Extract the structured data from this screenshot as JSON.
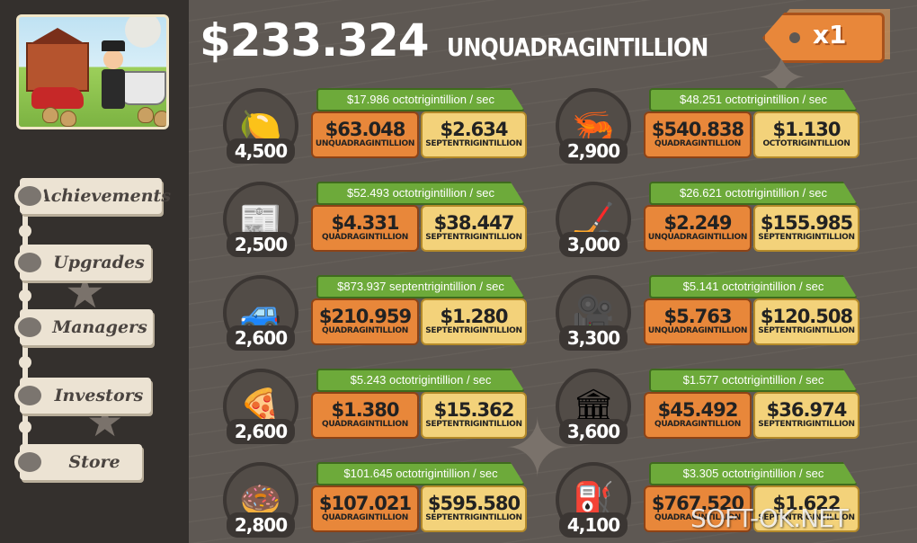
{
  "header": {
    "money_amount": "$233.324",
    "money_unit": "UNQUADRAGINTILLION",
    "multiplier": "x1"
  },
  "nav": [
    {
      "label": "Achievements"
    },
    {
      "label": "Upgrades"
    },
    {
      "label": "Managers"
    },
    {
      "label": "Investors"
    },
    {
      "label": "Store"
    }
  ],
  "businesses": [
    {
      "icon": "lemon-icon",
      "glyph": "🍋",
      "owned": "4,500",
      "rate": "$17.986 octotrigintillion / sec",
      "buy_value": "$63.048",
      "buy_unit": "UNQUADRAGINTILLION",
      "time_value": "$2.634",
      "time_unit": "SEPTENTRIGINTILLION"
    },
    {
      "icon": "shrimp-icon",
      "glyph": "🦐",
      "owned": "2,900",
      "rate": "$48.251 octotrigintillion / sec",
      "buy_value": "$540.838",
      "buy_unit": "QUADRAGINTILLION",
      "time_value": "$1.130",
      "time_unit": "OCTOTRIGINTILLION"
    },
    {
      "icon": "newspaper-icon",
      "glyph": "📰",
      "owned": "2,500",
      "rate": "$52.493 octotrigintillion / sec",
      "buy_value": "$4.331",
      "buy_unit": "QUADRAGINTILLION",
      "time_value": "$38.447",
      "time_unit": "SEPTENTRIGINTILLION"
    },
    {
      "icon": "hockey-icon",
      "glyph": "🏒",
      "owned": "3,000",
      "rate": "$26.621 octotrigintillion / sec",
      "buy_value": "$2.249",
      "buy_unit": "UNQUADRAGINTILLION",
      "time_value": "$155.985",
      "time_unit": "SEPTENTRIGINTILLION"
    },
    {
      "icon": "car-wash-icon",
      "glyph": "🚙",
      "owned": "2,600",
      "rate": "$873.937 septentrigintillion / sec",
      "buy_value": "$210.959",
      "buy_unit": "QUADRAGINTILLION",
      "time_value": "$1.280",
      "time_unit": "SEPTENTRIGINTILLION"
    },
    {
      "icon": "movie-camera-icon",
      "glyph": "🎥",
      "owned": "3,300",
      "rate": "$5.141 octotrigintillion / sec",
      "buy_value": "$5.763",
      "buy_unit": "UNQUADRAGINTILLION",
      "time_value": "$120.508",
      "time_unit": "SEPTENTRIGINTILLION"
    },
    {
      "icon": "pizza-icon",
      "glyph": "🍕",
      "owned": "2,600",
      "rate": "$5.243 octotrigintillion / sec",
      "buy_value": "$1.380",
      "buy_unit": "QUADRAGINTILLION",
      "time_value": "$15.362",
      "time_unit": "SEPTENTRIGINTILLION"
    },
    {
      "icon": "bank-icon",
      "glyph": "🏛",
      "owned": "3,600",
      "rate": "$1.577 octotrigintillion / sec",
      "buy_value": "$45.492",
      "buy_unit": "QUADRAGINTILLION",
      "time_value": "$36.974",
      "time_unit": "SEPTENTRIGINTILLION"
    },
    {
      "icon": "donut-icon",
      "glyph": "🍩",
      "owned": "2,800",
      "rate": "$101.645 octotrigintillion / sec",
      "buy_value": "$107.021",
      "buy_unit": "QUADRAGINTILLION",
      "time_value": "$595.580",
      "time_unit": "SEPTENTRIGINTILLION"
    },
    {
      "icon": "oil-rig-icon",
      "glyph": "⛽",
      "owned": "4,100",
      "rate": "$3.305 octotrigintillion / sec",
      "buy_value": "$767.520",
      "buy_unit": "QUADRAGINTILLION",
      "time_value": "$1.622",
      "time_unit": "SEPTENTRIGINTILLION"
    }
  ],
  "watermark": "SOFT-OK.NET"
}
